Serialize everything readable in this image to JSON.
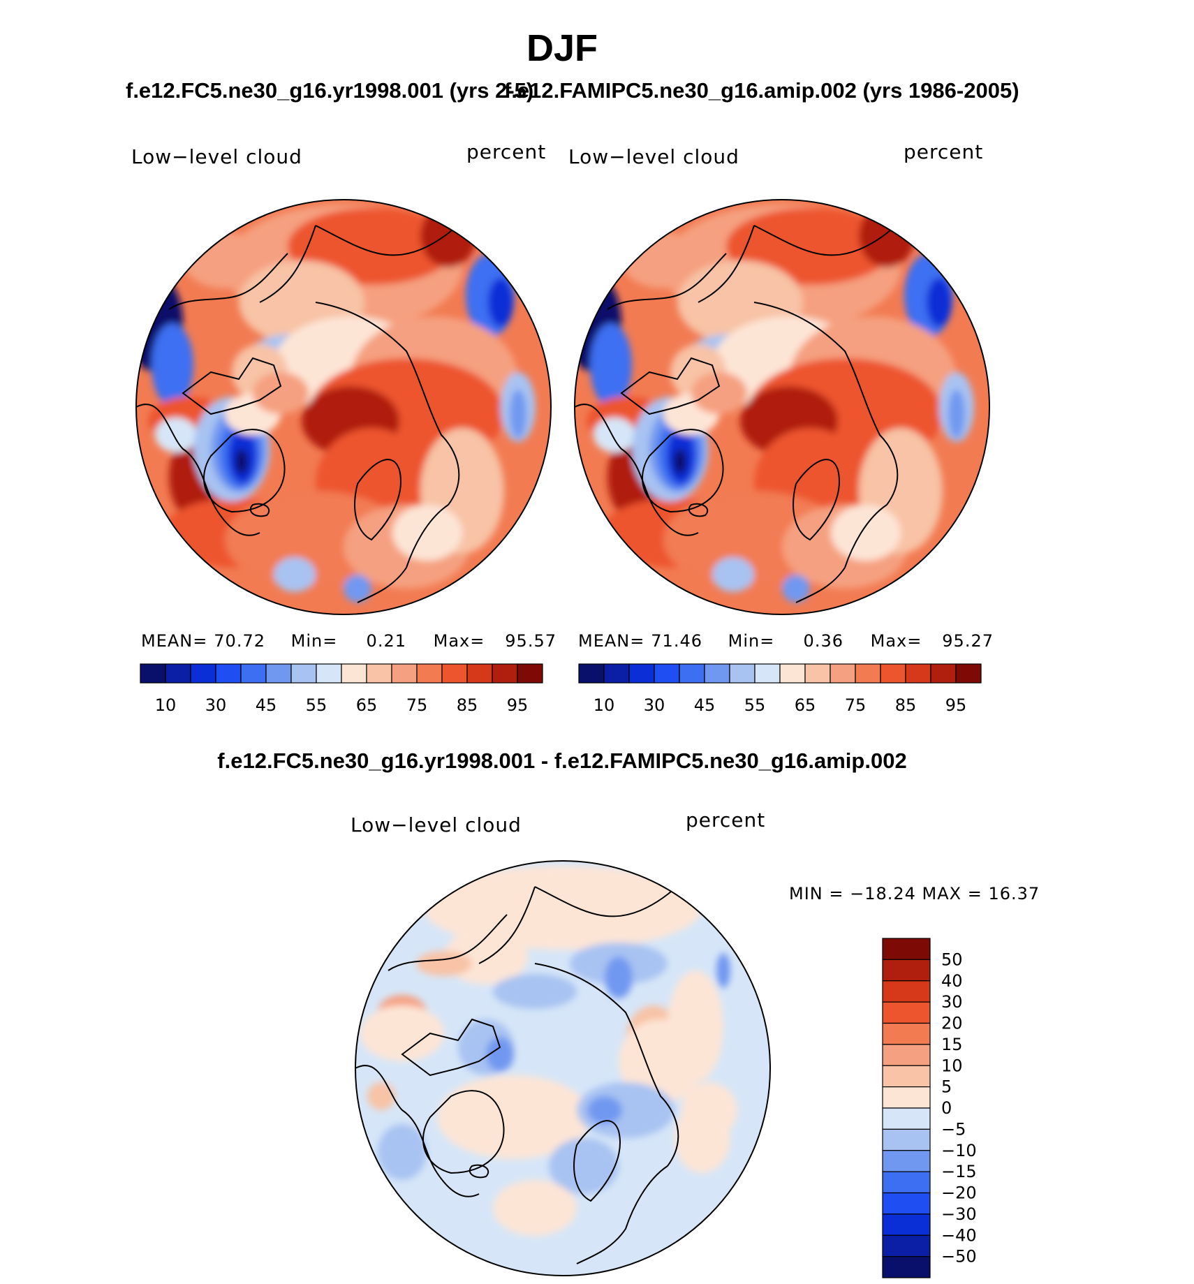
{
  "figure": {
    "season_title": "DJF",
    "diff_title": "f.e12.FC5.ne30_g16.yr1998.001 - f.e12.FAMIPC5.ne30_g16.amip.002"
  },
  "panels": [
    {
      "title": "f.e12.FC5.ne30_g16.yr1998.001 (yrs 2-5)",
      "variable_label": "Low−level cloud",
      "units_label": "percent",
      "stats": {
        "mean_label": "MEAN=",
        "mean": "70.72",
        "min_label": "Min=",
        "min": "0.21",
        "max_label": "Max=",
        "max": "95.57"
      }
    },
    {
      "title": "f.e12.FAMIPC5.ne30_g16.amip.002 (yrs 1986-2005)",
      "variable_label": "Low−level cloud",
      "units_label": "percent",
      "stats": {
        "mean_label": "MEAN=",
        "mean": "71.46",
        "min_label": "Min=",
        "min": "0.36",
        "max_label": "Max=",
        "max": "95.27"
      }
    },
    {
      "variable_label": "Low−level cloud",
      "units_label": "percent",
      "stats_text": "MIN = −18.24 MAX =   16.37"
    }
  ],
  "colorbar_top": {
    "colors": [
      "#08106b",
      "#0a1ea6",
      "#0b2fd6",
      "#1f4ef2",
      "#3c6ff2",
      "#7198f0",
      "#a8c3f2",
      "#d6e6f8",
      "#fde5d6",
      "#f8c3a6",
      "#f5a080",
      "#f27b52",
      "#ed552e",
      "#d6391a",
      "#b01f0e",
      "#7e0a05"
    ],
    "tick_labels": [
      "10",
      "30",
      "45",
      "55",
      "65",
      "75",
      "85",
      "95"
    ]
  },
  "colorbar_diff": {
    "colors": [
      "#7e0a05",
      "#b01f0e",
      "#d6391a",
      "#ed552e",
      "#f27b52",
      "#f5a080",
      "#f8c3a6",
      "#fde5d6",
      "#d6e6f8",
      "#a8c3f2",
      "#7198f0",
      "#3c6ff2",
      "#1f4ef2",
      "#0b2fd6",
      "#0a1ea6",
      "#08106b"
    ],
    "tick_labels": [
      "50",
      "40",
      "30",
      "20",
      "15",
      "10",
      "5",
      "0",
      "−5",
      "−10",
      "−15",
      "−20",
      "−30",
      "−40",
      "−50"
    ]
  },
  "map_fields": {
    "base_color": "#f27b52",
    "blob_colors": {
      "deep_red": "#b01f0e",
      "red": "#ed552e",
      "orange": "#f27b52",
      "salmon": "#f5a080",
      "peach": "#f8c3a6",
      "cream": "#fde5d6",
      "pale_blue": "#d6e6f8",
      "light_blue": "#a8c3f2",
      "mid_blue": "#7198f0",
      "blue": "#3c6ff2",
      "dark_blue": "#0b2fd6",
      "navy": "#08106b"
    },
    "diff_base_color": "#d6e6f8"
  }
}
